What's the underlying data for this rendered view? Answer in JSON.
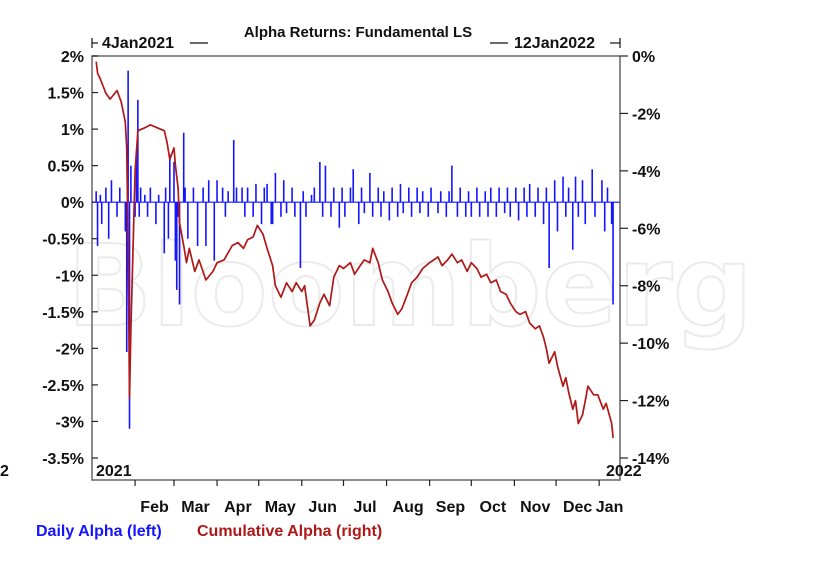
{
  "chart_data": {
    "type": "line",
    "title": "Alpha Returns: Fundamental LS",
    "date_range": {
      "start": "4Jan2021",
      "end": "12Jan2022"
    },
    "watermark": "Bloomberg",
    "left_axis": {
      "ticks": [
        "2%",
        "1.5%",
        "1%",
        "0.5%",
        "0%",
        "-0.5%",
        "-1%",
        "-1.5%",
        "-2%",
        "-2.5%",
        "-3%",
        "-3.5%"
      ],
      "ylim": [
        -3.5,
        2
      ]
    },
    "right_axis": {
      "ticks": [
        "0%",
        "-2%",
        "-4%",
        "-6%",
        "-8%",
        "-10%",
        "-12%",
        "-14%"
      ],
      "ylim": [
        -14,
        0
      ]
    },
    "x_axis": {
      "months": [
        "Feb",
        "Mar",
        "Apr",
        "May",
        "Jun",
        "Jul",
        "Aug",
        "Sep",
        "Oct",
        "Nov",
        "Dec",
        "Jan"
      ],
      "year_start": "2021",
      "year_end": "2022",
      "stray_label": "2"
    },
    "series": [
      {
        "name": "Daily Alpha (left)",
        "axis": "left",
        "style": "bars",
        "color": "#1414ff",
        "points": [
          [
            "2021-01-04",
            0.15
          ],
          [
            "2021-01-05",
            -0.6
          ],
          [
            "2021-01-07",
            0.1
          ],
          [
            "2021-01-08",
            -0.3
          ],
          [
            "2021-01-11",
            0.2
          ],
          [
            "2021-01-13",
            -0.5
          ],
          [
            "2021-01-15",
            0.3
          ],
          [
            "2021-01-19",
            -0.2
          ],
          [
            "2021-01-21",
            0.2
          ],
          [
            "2021-01-25",
            -0.4
          ],
          [
            "2021-01-26",
            -2.05
          ],
          [
            "2021-01-27",
            1.8
          ],
          [
            "2021-01-28",
            -3.1
          ],
          [
            "2021-01-29",
            0.5
          ],
          [
            "2021-02-01",
            -0.2
          ],
          [
            "2021-02-02",
            0.7
          ],
          [
            "2021-02-03",
            1.4
          ],
          [
            "2021-02-04",
            -0.2
          ],
          [
            "2021-02-05",
            0.2
          ],
          [
            "2021-02-08",
            0.1
          ],
          [
            "2021-02-10",
            -0.2
          ],
          [
            "2021-02-12",
            0.2
          ],
          [
            "2021-02-16",
            -0.3
          ],
          [
            "2021-02-18",
            0.1
          ],
          [
            "2021-02-22",
            -0.7
          ],
          [
            "2021-02-23",
            0.2
          ],
          [
            "2021-02-25",
            -0.5
          ],
          [
            "2021-02-26",
            0.65
          ],
          [
            "2021-03-01",
            0.55
          ],
          [
            "2021-03-02",
            -0.8
          ],
          [
            "2021-03-03",
            -1.2
          ],
          [
            "2021-03-04",
            -0.2
          ],
          [
            "2021-03-05",
            -1.4
          ],
          [
            "2021-03-08",
            0.95
          ],
          [
            "2021-03-09",
            0.2
          ],
          [
            "2021-03-11",
            -0.5
          ],
          [
            "2021-03-15",
            0.2
          ],
          [
            "2021-03-18",
            -0.6
          ],
          [
            "2021-03-22",
            0.2
          ],
          [
            "2021-03-24",
            -0.6
          ],
          [
            "2021-03-26",
            0.3
          ],
          [
            "2021-03-30",
            -0.8
          ],
          [
            "2021-04-01",
            0.3
          ],
          [
            "2021-04-05",
            0.2
          ],
          [
            "2021-04-07",
            -0.2
          ],
          [
            "2021-04-09",
            0.15
          ],
          [
            "2021-04-13",
            0.85
          ],
          [
            "2021-04-15",
            0.2
          ],
          [
            "2021-04-19",
            0.2
          ],
          [
            "2021-04-21",
            -0.2
          ],
          [
            "2021-04-23",
            0.2
          ],
          [
            "2021-04-27",
            -0.2
          ],
          [
            "2021-04-29",
            0.25
          ],
          [
            "2021-05-03",
            -0.3
          ],
          [
            "2021-05-05",
            0.2
          ],
          [
            "2021-05-07",
            0.25
          ],
          [
            "2021-05-10",
            -0.3
          ],
          [
            "2021-05-11",
            -0.3
          ],
          [
            "2021-05-13",
            0.4
          ],
          [
            "2021-05-17",
            -0.2
          ],
          [
            "2021-05-19",
            0.3
          ],
          [
            "2021-05-21",
            -0.15
          ],
          [
            "2021-05-25",
            0.2
          ],
          [
            "2021-05-27",
            -0.2
          ],
          [
            "2021-05-31",
            -0.9
          ],
          [
            "2021-06-02",
            0.15
          ],
          [
            "2021-06-04",
            -0.2
          ],
          [
            "2021-06-08",
            0.1
          ],
          [
            "2021-06-10",
            0.2
          ],
          [
            "2021-06-14",
            0.55
          ],
          [
            "2021-06-16",
            -0.2
          ],
          [
            "2021-06-18",
            0.5
          ],
          [
            "2021-06-22",
            -0.2
          ],
          [
            "2021-06-24",
            0.2
          ],
          [
            "2021-06-28",
            -0.35
          ],
          [
            "2021-06-30",
            0.2
          ],
          [
            "2021-07-02",
            -0.2
          ],
          [
            "2021-07-06",
            0.2
          ],
          [
            "2021-07-08",
            0.45
          ],
          [
            "2021-07-12",
            -0.3
          ],
          [
            "2021-07-14",
            0.2
          ],
          [
            "2021-07-16",
            -0.15
          ],
          [
            "2021-07-20",
            0.4
          ],
          [
            "2021-07-22",
            -0.2
          ],
          [
            "2021-07-26",
            0.2
          ],
          [
            "2021-07-28",
            -0.2
          ],
          [
            "2021-07-30",
            0.15
          ],
          [
            "2021-08-03",
            -0.25
          ],
          [
            "2021-08-05",
            0.2
          ],
          [
            "2021-08-09",
            -0.2
          ],
          [
            "2021-08-11",
            0.25
          ],
          [
            "2021-08-13",
            -0.15
          ],
          [
            "2021-08-17",
            0.2
          ],
          [
            "2021-08-19",
            -0.2
          ],
          [
            "2021-08-23",
            0.2
          ],
          [
            "2021-08-25",
            -0.15
          ],
          [
            "2021-08-27",
            0.15
          ],
          [
            "2021-08-31",
            -0.2
          ],
          [
            "2021-09-02",
            0.2
          ],
          [
            "2021-09-07",
            -0.15
          ],
          [
            "2021-09-09",
            0.15
          ],
          [
            "2021-09-13",
            -0.2
          ],
          [
            "2021-09-15",
            0.15
          ],
          [
            "2021-09-17",
            0.5
          ],
          [
            "2021-09-21",
            -0.2
          ],
          [
            "2021-09-23",
            0.2
          ],
          [
            "2021-09-27",
            -0.2
          ],
          [
            "2021-09-29",
            0.15
          ],
          [
            "2021-10-01",
            -0.2
          ],
          [
            "2021-10-05",
            0.2
          ],
          [
            "2021-10-07",
            -0.2
          ],
          [
            "2021-10-11",
            0.15
          ],
          [
            "2021-10-13",
            -0.2
          ],
          [
            "2021-10-15",
            0.2
          ],
          [
            "2021-10-19",
            -0.2
          ],
          [
            "2021-10-21",
            0.2
          ],
          [
            "2021-10-25",
            -0.15
          ],
          [
            "2021-10-27",
            0.2
          ],
          [
            "2021-10-29",
            -0.2
          ],
          [
            "2021-11-02",
            0.2
          ],
          [
            "2021-11-04",
            -0.25
          ],
          [
            "2021-11-08",
            0.2
          ],
          [
            "2021-11-10",
            -0.2
          ],
          [
            "2021-11-12",
            0.25
          ],
          [
            "2021-11-16",
            -0.2
          ],
          [
            "2021-11-18",
            0.2
          ],
          [
            "2021-11-22",
            -0.3
          ],
          [
            "2021-11-24",
            0.2
          ],
          [
            "2021-11-26",
            -0.9
          ],
          [
            "2021-11-30",
            0.3
          ],
          [
            "2021-12-02",
            -0.4
          ],
          [
            "2021-12-06",
            0.35
          ],
          [
            "2021-12-08",
            -0.2
          ],
          [
            "2021-12-10",
            0.2
          ],
          [
            "2021-12-13",
            -0.65
          ],
          [
            "2021-12-15",
            0.35
          ],
          [
            "2021-12-17",
            -0.2
          ],
          [
            "2021-12-20",
            0.3
          ],
          [
            "2021-12-22",
            -0.3
          ],
          [
            "2021-12-27",
            0.45
          ],
          [
            "2021-12-29",
            -0.2
          ],
          [
            "2022-01-03",
            0.3
          ],
          [
            "2022-01-05",
            -0.4
          ],
          [
            "2022-01-07",
            0.2
          ],
          [
            "2022-01-10",
            -0.3
          ],
          [
            "2022-01-11",
            -1.4
          ]
        ]
      },
      {
        "name": "Cumulative Alpha (right)",
        "axis": "right",
        "style": "line",
        "color": "#b01818",
        "points": [
          [
            "2021-01-04",
            -0.2
          ],
          [
            "2021-01-05",
            -0.6
          ],
          [
            "2021-01-07",
            -0.8
          ],
          [
            "2021-01-11",
            -1.3
          ],
          [
            "2021-01-14",
            -1.5
          ],
          [
            "2021-01-19",
            -1.2
          ],
          [
            "2021-01-22",
            -1.6
          ],
          [
            "2021-01-25",
            -2.3
          ],
          [
            "2021-01-26",
            -3.2
          ],
          [
            "2021-01-27",
            -6.5
          ],
          [
            "2021-01-28",
            -11.9
          ],
          [
            "2021-01-29",
            -9.5
          ],
          [
            "2021-02-01",
            -4.0
          ],
          [
            "2021-02-03",
            -2.6
          ],
          [
            "2021-02-08",
            -2.5
          ],
          [
            "2021-02-12",
            -2.4
          ],
          [
            "2021-02-17",
            -2.5
          ],
          [
            "2021-02-22",
            -2.6
          ],
          [
            "2021-02-24",
            -3.0
          ],
          [
            "2021-02-26",
            -3.6
          ],
          [
            "2021-03-01",
            -3.2
          ],
          [
            "2021-03-02",
            -3.8
          ],
          [
            "2021-03-04",
            -4.6
          ],
          [
            "2021-03-05",
            -5.8
          ],
          [
            "2021-03-08",
            -6.6
          ],
          [
            "2021-03-10",
            -7.2
          ],
          [
            "2021-03-12",
            -6.7
          ],
          [
            "2021-03-16",
            -7.5
          ],
          [
            "2021-03-19",
            -7.1
          ],
          [
            "2021-03-24",
            -7.8
          ],
          [
            "2021-03-29",
            -7.5
          ],
          [
            "2021-04-01",
            -7.2
          ],
          [
            "2021-04-06",
            -7.1
          ],
          [
            "2021-04-12",
            -6.6
          ],
          [
            "2021-04-16",
            -6.5
          ],
          [
            "2021-04-20",
            -6.7
          ],
          [
            "2021-04-23",
            -6.4
          ],
          [
            "2021-04-27",
            -6.3
          ],
          [
            "2021-04-30",
            -5.9
          ],
          [
            "2021-05-04",
            -6.2
          ],
          [
            "2021-05-07",
            -6.7
          ],
          [
            "2021-05-11",
            -7.3
          ],
          [
            "2021-05-13",
            -8.0
          ],
          [
            "2021-05-17",
            -8.4
          ],
          [
            "2021-05-21",
            -7.9
          ],
          [
            "2021-05-25",
            -8.2
          ],
          [
            "2021-05-28",
            -7.9
          ],
          [
            "2021-06-01",
            -8.2
          ],
          [
            "2021-06-03",
            -8.0
          ],
          [
            "2021-06-07",
            -9.4
          ],
          [
            "2021-06-10",
            -9.2
          ],
          [
            "2021-06-14",
            -8.6
          ],
          [
            "2021-06-17",
            -8.3
          ],
          [
            "2021-06-21",
            -8.7
          ],
          [
            "2021-06-24",
            -7.7
          ],
          [
            "2021-06-28",
            -7.3
          ],
          [
            "2021-07-01",
            -7.4
          ],
          [
            "2021-07-06",
            -7.2
          ],
          [
            "2021-07-09",
            -7.6
          ],
          [
            "2021-07-13",
            -7.3
          ],
          [
            "2021-07-16",
            -7.1
          ],
          [
            "2021-07-20",
            -7.2
          ],
          [
            "2021-07-22",
            -6.7
          ],
          [
            "2021-07-26",
            -7.2
          ],
          [
            "2021-07-29",
            -7.8
          ],
          [
            "2021-08-02",
            -8.2
          ],
          [
            "2021-08-05",
            -8.6
          ],
          [
            "2021-08-09",
            -9.0
          ],
          [
            "2021-08-12",
            -8.8
          ],
          [
            "2021-08-16",
            -8.3
          ],
          [
            "2021-08-19",
            -7.9
          ],
          [
            "2021-08-23",
            -7.7
          ],
          [
            "2021-08-27",
            -7.4
          ],
          [
            "2021-09-01",
            -7.2
          ],
          [
            "2021-09-07",
            -7.0
          ],
          [
            "2021-09-10",
            -7.3
          ],
          [
            "2021-09-14",
            -7.1
          ],
          [
            "2021-09-17",
            -6.9
          ],
          [
            "2021-09-21",
            -7.2
          ],
          [
            "2021-09-24",
            -7.1
          ],
          [
            "2021-09-28",
            -7.5
          ],
          [
            "2021-10-01",
            -7.2
          ],
          [
            "2021-10-05",
            -7.4
          ],
          [
            "2021-10-08",
            -7.7
          ],
          [
            "2021-10-12",
            -7.6
          ],
          [
            "2021-10-15",
            -7.9
          ],
          [
            "2021-10-19",
            -7.8
          ],
          [
            "2021-10-22",
            -8.2
          ],
          [
            "2021-10-26",
            -8.3
          ],
          [
            "2021-10-29",
            -8.6
          ],
          [
            "2021-11-02",
            -8.9
          ],
          [
            "2021-11-05",
            -9.0
          ],
          [
            "2021-11-09",
            -8.9
          ],
          [
            "2021-11-12",
            -9.3
          ],
          [
            "2021-11-16",
            -9.5
          ],
          [
            "2021-11-19",
            -9.4
          ],
          [
            "2021-11-22",
            -9.8
          ],
          [
            "2021-11-24",
            -10.2
          ],
          [
            "2021-11-26",
            -10.7
          ],
          [
            "2021-11-30",
            -10.3
          ],
          [
            "2021-12-02",
            -10.8
          ],
          [
            "2021-12-06",
            -11.5
          ],
          [
            "2021-12-08",
            -11.2
          ],
          [
            "2021-12-10",
            -11.7
          ],
          [
            "2021-12-13",
            -12.3
          ],
          [
            "2021-12-15",
            -12.0
          ],
          [
            "2021-12-17",
            -12.8
          ],
          [
            "2021-12-20",
            -12.5
          ],
          [
            "2021-12-22",
            -12.0
          ],
          [
            "2021-12-24",
            -11.5
          ],
          [
            "2021-12-28",
            -11.8
          ],
          [
            "2021-12-31",
            -11.8
          ],
          [
            "2022-01-04",
            -12.3
          ],
          [
            "2022-01-06",
            -12.1
          ],
          [
            "2022-01-10",
            -12.8
          ],
          [
            "2022-01-11",
            -13.3
          ]
        ]
      }
    ],
    "grid": false,
    "legend_position": "bottom-left"
  }
}
